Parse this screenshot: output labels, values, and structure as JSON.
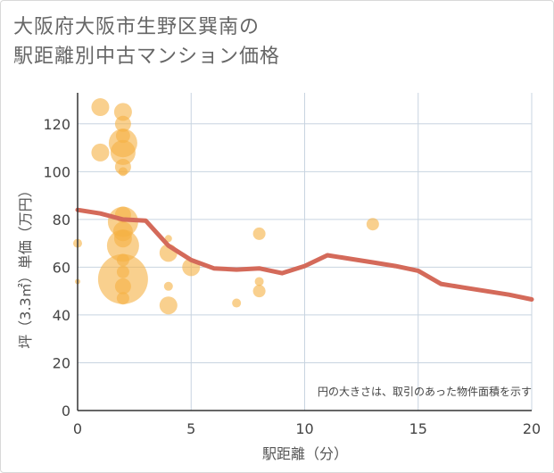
{
  "chart_data": {
    "type": "scatter",
    "title_line1": "大阪府大阪市生野区巽南の",
    "title_line2": "駅距離別中古マンション価格",
    "xlabel": "駅距離（分）",
    "ylabel": "坪（3.3㎡）単価（万円）",
    "note": "円の大きさは、取引のあった物件面積を示す",
    "xlim": [
      0,
      20
    ],
    "ylim": [
      0,
      133
    ],
    "x_ticks": [
      "0",
      "5",
      "10",
      "15",
      "20"
    ],
    "y_ticks": [
      "0",
      "20",
      "40",
      "60",
      "80",
      "100",
      "120"
    ],
    "x_tick_values": [
      0,
      5,
      10,
      15,
      20
    ],
    "y_tick_values": [
      0,
      20,
      40,
      60,
      80,
      100,
      120
    ],
    "bubbles": [
      {
        "x": 0,
        "y": 70,
        "size": 5
      },
      {
        "x": 0,
        "y": 54,
        "size": 3
      },
      {
        "x": 1,
        "y": 127,
        "size": 10
      },
      {
        "x": 1,
        "y": 108,
        "size": 10
      },
      {
        "x": 2,
        "y": 125,
        "size": 10
      },
      {
        "x": 2,
        "y": 120,
        "size": 9
      },
      {
        "x": 2,
        "y": 115,
        "size": 8
      },
      {
        "x": 2,
        "y": 112,
        "size": 16
      },
      {
        "x": 2,
        "y": 108,
        "size": 14
      },
      {
        "x": 2,
        "y": 102,
        "size": 9
      },
      {
        "x": 2,
        "y": 100,
        "size": 5
      },
      {
        "x": 2,
        "y": 82,
        "size": 9
      },
      {
        "x": 2,
        "y": 79,
        "size": 17
      },
      {
        "x": 2,
        "y": 75,
        "size": 11
      },
      {
        "x": 2,
        "y": 72,
        "size": 10
      },
      {
        "x": 2,
        "y": 69,
        "size": 18
      },
      {
        "x": 2,
        "y": 63,
        "size": 7
      },
      {
        "x": 2,
        "y": 58,
        "size": 7
      },
      {
        "x": 2,
        "y": 55,
        "size": 28
      },
      {
        "x": 2,
        "y": 52,
        "size": 9
      },
      {
        "x": 2,
        "y": 47,
        "size": 7
      },
      {
        "x": 4,
        "y": 72,
        "size": 4
      },
      {
        "x": 4,
        "y": 66,
        "size": 10
      },
      {
        "x": 4,
        "y": 52,
        "size": 5
      },
      {
        "x": 4,
        "y": 44,
        "size": 10
      },
      {
        "x": 5,
        "y": 60,
        "size": 10
      },
      {
        "x": 7,
        "y": 45,
        "size": 5
      },
      {
        "x": 8,
        "y": 74,
        "size": 7
      },
      {
        "x": 8,
        "y": 54,
        "size": 5
      },
      {
        "x": 8,
        "y": 50,
        "size": 7
      },
      {
        "x": 13,
        "y": 78,
        "size": 7
      }
    ],
    "trend_line": {
      "x": [
        0,
        1,
        2,
        3,
        4,
        5,
        6,
        7,
        8,
        9,
        10,
        11,
        12,
        13,
        14,
        15,
        16,
        17,
        18,
        19,
        20
      ],
      "y": [
        84,
        82.5,
        80,
        79.5,
        69,
        63,
        59.5,
        59,
        59.5,
        57.5,
        60.5,
        65,
        63.5,
        62,
        60.5,
        58.5,
        53,
        51.5,
        50,
        48.5,
        46.5
      ]
    },
    "colors": {
      "bubble": "#f5b142",
      "trend": "#d46a5a",
      "grid": "#c8d4e0",
      "axis": "#333333"
    }
  }
}
